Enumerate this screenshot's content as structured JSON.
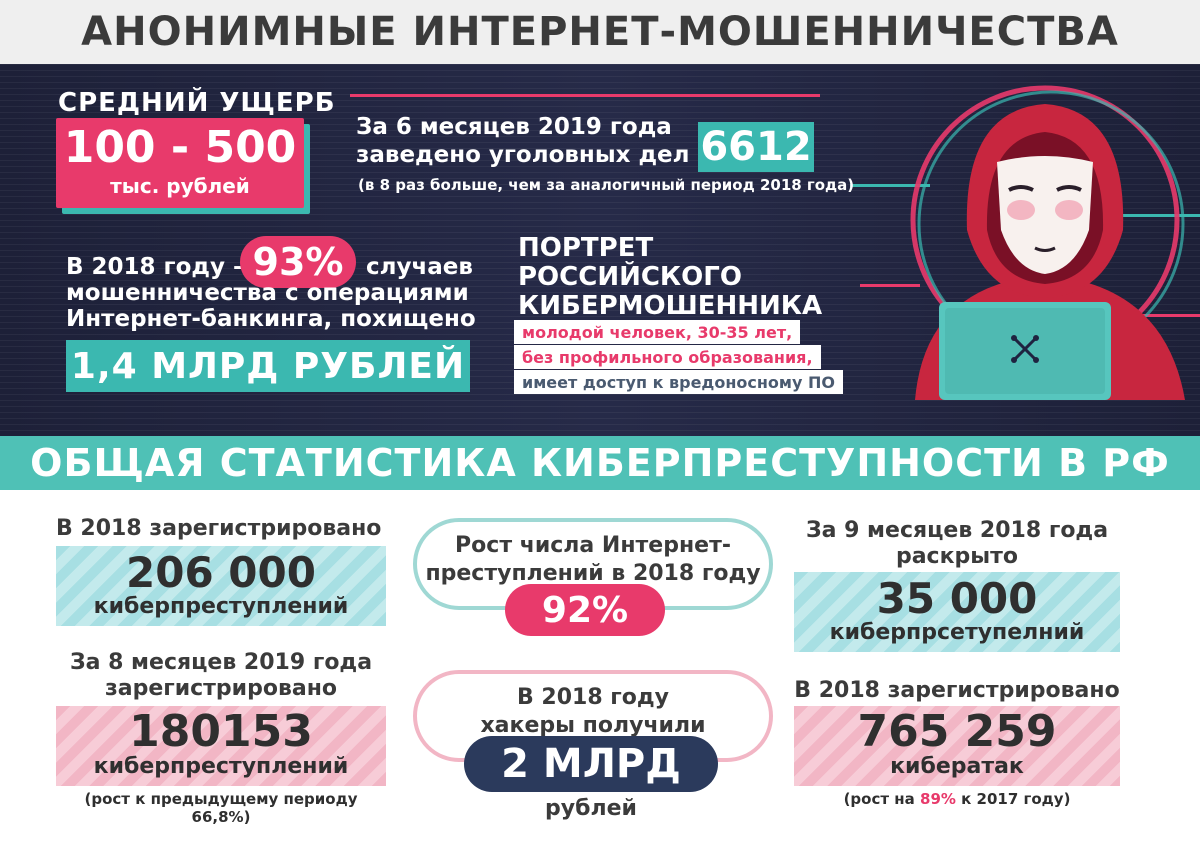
{
  "title": "АНОНИМНЫЕ ИНТЕРНЕТ-МОШЕННИЧЕСТВА",
  "damage": {
    "label": "СРЕДНИЙ УЩЕРБ",
    "value": "100 - 500",
    "unit": "тыс. рублей"
  },
  "criminal_cases": {
    "line1": "За 6 месяцев 2019 года",
    "line2": "заведено уголовных дел –",
    "value": "6612",
    "note": "(в 8 раз больше, чем за аналогичный период 2018 года)"
  },
  "banking_fraud": {
    "before": "В 2018 году –",
    "percent": "93%",
    "after": "случаев",
    "line2": "мошенничества с операциями",
    "line3": "Интернет-банкинга, похищено",
    "amount": "1,4 МЛРД РУБЛЕЙ"
  },
  "portrait": {
    "title_lines": [
      "ПОРТРЕТ",
      "РОССИЙСКОГО",
      "КИБЕРМОШЕННИКА"
    ],
    "traits": [
      "молодой человек, 30-35 лет,",
      "без профильного образования,",
      "имеет доступ к вредоносному ПО"
    ]
  },
  "section_title": "ОБЩАЯ СТАТИСТИКА КИБЕРПРЕСТУПНОСТИ В РФ",
  "stats": {
    "registered_2018": {
      "caption": "В 2018 зарегистрировано",
      "value": "206 000",
      "unit": "киберпреступлений"
    },
    "registered_8m_2019": {
      "caption_lines": [
        "За 8 месяцев 2019 года",
        "зарегистрировано"
      ],
      "value": "180153",
      "unit": "киберпреступлений",
      "note": "(рост к предыдущему периоду 66,8%)"
    },
    "growth": {
      "lines": [
        "Рост числа Интернет-",
        "преступлений в 2018 году"
      ],
      "value": "92%"
    },
    "hackers": {
      "lines": [
        "В 2018 году",
        "хакеры получили"
      ],
      "value": "2 МЛРД",
      "unit": "рублей"
    },
    "solved_9m_2018": {
      "caption_lines": [
        "За 9 месяцев 2018 года",
        "раскрыто"
      ],
      "value": "35 000",
      "unit": "киберпрсетупелний"
    },
    "attacks_2018": {
      "caption": "В 2018 зарегистрировано",
      "value": "765 259",
      "unit": "кибератак",
      "note_before": "(рост на",
      "note_highlight": "89%",
      "note_after": "к 2017 году)"
    }
  },
  "colors": {
    "accent_pink": "#e83a6b",
    "accent_teal": "#3bb8b0",
    "navy": "#2b3a5c",
    "dark_bg": "#1f2340"
  },
  "icons": [
    "hacker-illustration",
    "crossed-tools-icon"
  ]
}
